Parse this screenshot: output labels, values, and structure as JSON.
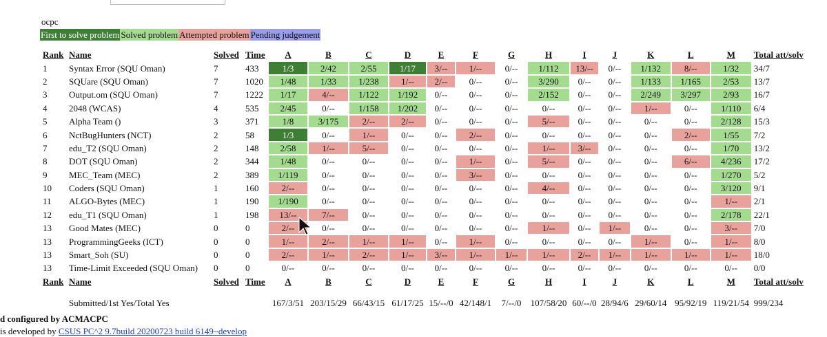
{
  "contest": "ocpc",
  "legend": [
    {
      "label": "First to solve problem",
      "color": "#3d7f34"
    },
    {
      "label": "Solved problem",
      "color": "#a4dc8f"
    },
    {
      "label": "Attempted problem",
      "color": "#e9a29b"
    },
    {
      "label": "Pending judgement",
      "color": "#9a9cec"
    }
  ],
  "header": {
    "columns": [
      "Rank",
      "Name",
      "Solved",
      "Time",
      "A",
      "B",
      "C",
      "D",
      "E",
      "F",
      "G",
      "H",
      "I",
      "J",
      "K",
      "L",
      "M",
      "Total att/solv"
    ]
  },
  "rows": [
    {
      "rank": "1",
      "name": "Syntax Error (SQU Oman)",
      "solved": "7",
      "time": "433",
      "cells": [
        "1/3",
        "2/42",
        "2/55",
        "1/17",
        "3/--",
        "1/--",
        "0/--",
        "1/112",
        "13/--",
        "0/--",
        "1/132",
        "8/--",
        "1/32"
      ],
      "fills": [
        "#3d7f34",
        "#a4dc8f",
        "#a4dc8f",
        "#3d7f34",
        "#e9a29b",
        "#e9a29b",
        null,
        "#a4dc8f",
        "#e9a29b",
        null,
        "#a4dc8f",
        "#e9a29b",
        "#a4dc8f"
      ],
      "total": "34/7"
    },
    {
      "rank": "2",
      "name": "SQUare (SQU Oman)",
      "solved": "7",
      "time": "1020",
      "cells": [
        "1/48",
        "1/33",
        "1/238",
        "1/--",
        "2/--",
        "0/--",
        "0/--",
        "3/290",
        "0/--",
        "0/--",
        "1/133",
        "1/165",
        "2/53"
      ],
      "fills": [
        "#a4dc8f",
        "#a4dc8f",
        "#a4dc8f",
        "#e9a29b",
        "#e9a29b",
        null,
        null,
        "#a4dc8f",
        null,
        null,
        "#a4dc8f",
        "#a4dc8f",
        "#a4dc8f"
      ],
      "total": "13/7"
    },
    {
      "rank": "3",
      "name": "Output.om (SQU Oman)",
      "solved": "7",
      "time": "1222",
      "cells": [
        "1/17",
        "4/--",
        "1/122",
        "1/192",
        "0/--",
        "0/--",
        "0/--",
        "2/152",
        "0/--",
        "0/--",
        "2/249",
        "3/297",
        "2/93"
      ],
      "fills": [
        "#a4dc8f",
        "#e9a29b",
        "#a4dc8f",
        "#a4dc8f",
        null,
        null,
        null,
        "#a4dc8f",
        null,
        null,
        "#a4dc8f",
        "#a4dc8f",
        "#a4dc8f"
      ],
      "total": "16/7"
    },
    {
      "rank": "4",
      "name": "2048 (WCAS)",
      "solved": "4",
      "time": "535",
      "cells": [
        "2/45",
        "0/--",
        "1/158",
        "1/202",
        "0/--",
        "0/--",
        "0/--",
        "0/--",
        "0/--",
        "0/--",
        "1/--",
        "0/--",
        "1/110"
      ],
      "fills": [
        "#a4dc8f",
        null,
        "#a4dc8f",
        "#a4dc8f",
        null,
        null,
        null,
        null,
        null,
        null,
        "#e9a29b",
        null,
        "#a4dc8f"
      ],
      "total": "6/4"
    },
    {
      "rank": "5",
      "name": "Alpha Team ()",
      "solved": "3",
      "time": "371",
      "cells": [
        "1/8",
        "3/175",
        "2/--",
        "2/--",
        "0/--",
        "0/--",
        "0/--",
        "5/--",
        "0/--",
        "0/--",
        "0/--",
        "0/--",
        "2/128"
      ],
      "fills": [
        "#a4dc8f",
        "#a4dc8f",
        "#e9a29b",
        "#e9a29b",
        null,
        null,
        null,
        "#e9a29b",
        null,
        null,
        null,
        null,
        "#a4dc8f"
      ],
      "total": "15/3"
    },
    {
      "rank": "6",
      "name": "NctBugHunters (NCT)",
      "solved": "2",
      "time": "58",
      "cells": [
        "1/3",
        "0/--",
        "1/--",
        "0/--",
        "0/--",
        "2/--",
        "0/--",
        "0/--",
        "0/--",
        "0/--",
        "0/--",
        "2/--",
        "1/55"
      ],
      "fills": [
        "#3d7f34",
        null,
        "#e9a29b",
        null,
        null,
        "#e9a29b",
        null,
        null,
        null,
        null,
        null,
        "#e9a29b",
        "#a4dc8f"
      ],
      "total": "7/2"
    },
    {
      "rank": "7",
      "name": "edu_T2 (SQU Oman)",
      "solved": "2",
      "time": "148",
      "cells": [
        "2/58",
        "1/--",
        "5/--",
        "0/--",
        "0/--",
        "0/--",
        "0/--",
        "1/--",
        "3/--",
        "0/--",
        "0/--",
        "0/--",
        "1/70"
      ],
      "fills": [
        "#a4dc8f",
        "#e9a29b",
        "#e9a29b",
        null,
        null,
        null,
        null,
        "#e9a29b",
        "#e9a29b",
        null,
        null,
        null,
        "#a4dc8f"
      ],
      "total": "13/2"
    },
    {
      "rank": "8",
      "name": "DOT (SQU Oman)",
      "solved": "2",
      "time": "344",
      "cells": [
        "1/48",
        "0/--",
        "0/--",
        "0/--",
        "0/--",
        "1/--",
        "0/--",
        "5/--",
        "0/--",
        "0/--",
        "0/--",
        "6/--",
        "4/236"
      ],
      "fills": [
        "#a4dc8f",
        null,
        null,
        null,
        null,
        "#e9a29b",
        null,
        "#e9a29b",
        null,
        null,
        null,
        "#e9a29b",
        "#a4dc8f"
      ],
      "total": "17/2"
    },
    {
      "rank": "9",
      "name": "MEC_Team (MEC)",
      "solved": "2",
      "time": "389",
      "cells": [
        "1/119",
        "0/--",
        "0/--",
        "0/--",
        "0/--",
        "3/--",
        "0/--",
        "0/--",
        "0/--",
        "0/--",
        "0/--",
        "0/--",
        "1/270"
      ],
      "fills": [
        "#a4dc8f",
        null,
        null,
        null,
        null,
        "#e9a29b",
        null,
        null,
        null,
        null,
        null,
        null,
        "#a4dc8f"
      ],
      "total": "5/2"
    },
    {
      "rank": "10",
      "name": "Coders (SQU Oman)",
      "solved": "1",
      "time": "160",
      "cells": [
        "2/--",
        "0/--",
        "0/--",
        "0/--",
        "0/--",
        "0/--",
        "0/--",
        "4/--",
        "0/--",
        "0/--",
        "0/--",
        "0/--",
        "3/120"
      ],
      "fills": [
        "#e9a29b",
        null,
        null,
        null,
        null,
        null,
        null,
        "#e9a29b",
        null,
        null,
        null,
        null,
        "#a4dc8f"
      ],
      "total": "9/1"
    },
    {
      "rank": "11",
      "name": "ALGO-Bytes (MEC)",
      "solved": "1",
      "time": "190",
      "cells": [
        "1/190",
        "0/--",
        "0/--",
        "0/--",
        "0/--",
        "0/--",
        "0/--",
        "0/--",
        "0/--",
        "0/--",
        "0/--",
        "0/--",
        "1/--"
      ],
      "fills": [
        "#a4dc8f",
        null,
        null,
        null,
        null,
        null,
        null,
        null,
        null,
        null,
        null,
        null,
        "#e9a29b"
      ],
      "total": "2/1"
    },
    {
      "rank": "12",
      "name": "edu_T1 (SQU Oman)",
      "solved": "1",
      "time": "198",
      "cells": [
        "13/--",
        "7/--",
        "0/--",
        "0/--",
        "0/--",
        "0/--",
        "0/--",
        "0/--",
        "0/--",
        "0/--",
        "0/--",
        "0/--",
        "2/178"
      ],
      "fills": [
        "#e9a29b",
        "#e9a29b",
        null,
        null,
        null,
        null,
        null,
        null,
        null,
        null,
        null,
        null,
        "#a4dc8f"
      ],
      "total": "22/1"
    },
    {
      "rank": "13",
      "name": "Good Mates (MEC)",
      "solved": "0",
      "time": "0",
      "cells": [
        "2/--",
        "0/--",
        "0/--",
        "0/--",
        "0/--",
        "0/--",
        "0/--",
        "1/--",
        "0/--",
        "1/--",
        "0/--",
        "0/--",
        "3/--"
      ],
      "fills": [
        "#e9a29b",
        null,
        null,
        null,
        null,
        null,
        null,
        "#e9a29b",
        null,
        "#e9a29b",
        null,
        null,
        "#e9a29b"
      ],
      "total": "7/0"
    },
    {
      "rank": "13",
      "name": "ProgrammingGeeks (ICT)",
      "solved": "0",
      "time": "0",
      "cells": [
        "1/--",
        "2/--",
        "1/--",
        "1/--",
        "0/--",
        "1/--",
        "0/--",
        "0/--",
        "0/--",
        "0/--",
        "1/--",
        "0/--",
        "1/--"
      ],
      "fills": [
        "#e9a29b",
        "#e9a29b",
        "#e9a29b",
        "#e9a29b",
        null,
        "#e9a29b",
        null,
        null,
        null,
        null,
        "#e9a29b",
        null,
        "#e9a29b"
      ],
      "total": "8/0"
    },
    {
      "rank": "13",
      "name": "Smart_Soh (SU)",
      "solved": "0",
      "time": "0",
      "cells": [
        "2/--",
        "1/--",
        "2/--",
        "1/--",
        "3/--",
        "1/--",
        "1/--",
        "1/--",
        "2/--",
        "1/--",
        "1/--",
        "1/--",
        "1/--"
      ],
      "fills": [
        "#e9a29b",
        "#e9a29b",
        "#e9a29b",
        "#e9a29b",
        "#e9a29b",
        "#e9a29b",
        "#e9a29b",
        "#e9a29b",
        "#e9a29b",
        "#e9a29b",
        "#e9a29b",
        "#e9a29b",
        "#e9a29b"
      ],
      "total": "18/0"
    },
    {
      "rank": "13",
      "name": "Time-Limit Exceeded (SQU Oman)",
      "solved": "0",
      "time": "0",
      "cells": [
        "0/--",
        "0/--",
        "0/--",
        "0/--",
        "0/--",
        "0/--",
        "0/--",
        "0/--",
        "0/--",
        "0/--",
        "0/--",
        "0/--",
        "0/--"
      ],
      "fills": [
        null,
        null,
        null,
        null,
        null,
        null,
        null,
        null,
        null,
        null,
        null,
        null,
        null
      ],
      "total": "0/0"
    }
  ],
  "summary": {
    "label": "Submitted/1st Yes/Total Yes",
    "cells": [
      "167/3/51",
      "203/15/29",
      "66/43/15",
      "61/17/25",
      "15/--/0",
      "42/148/1",
      "7/--/0",
      "107/58/20",
      "60/--/0",
      "28/94/6",
      "29/60/14",
      "95/92/19",
      "119/21/54"
    ],
    "total": "999/234"
  },
  "footer": {
    "configured": "d configured by ACMACPC",
    "developed": "is developed by ",
    "link": "CSUS PC^2 9.7build 20200723 build 6149~develop"
  }
}
